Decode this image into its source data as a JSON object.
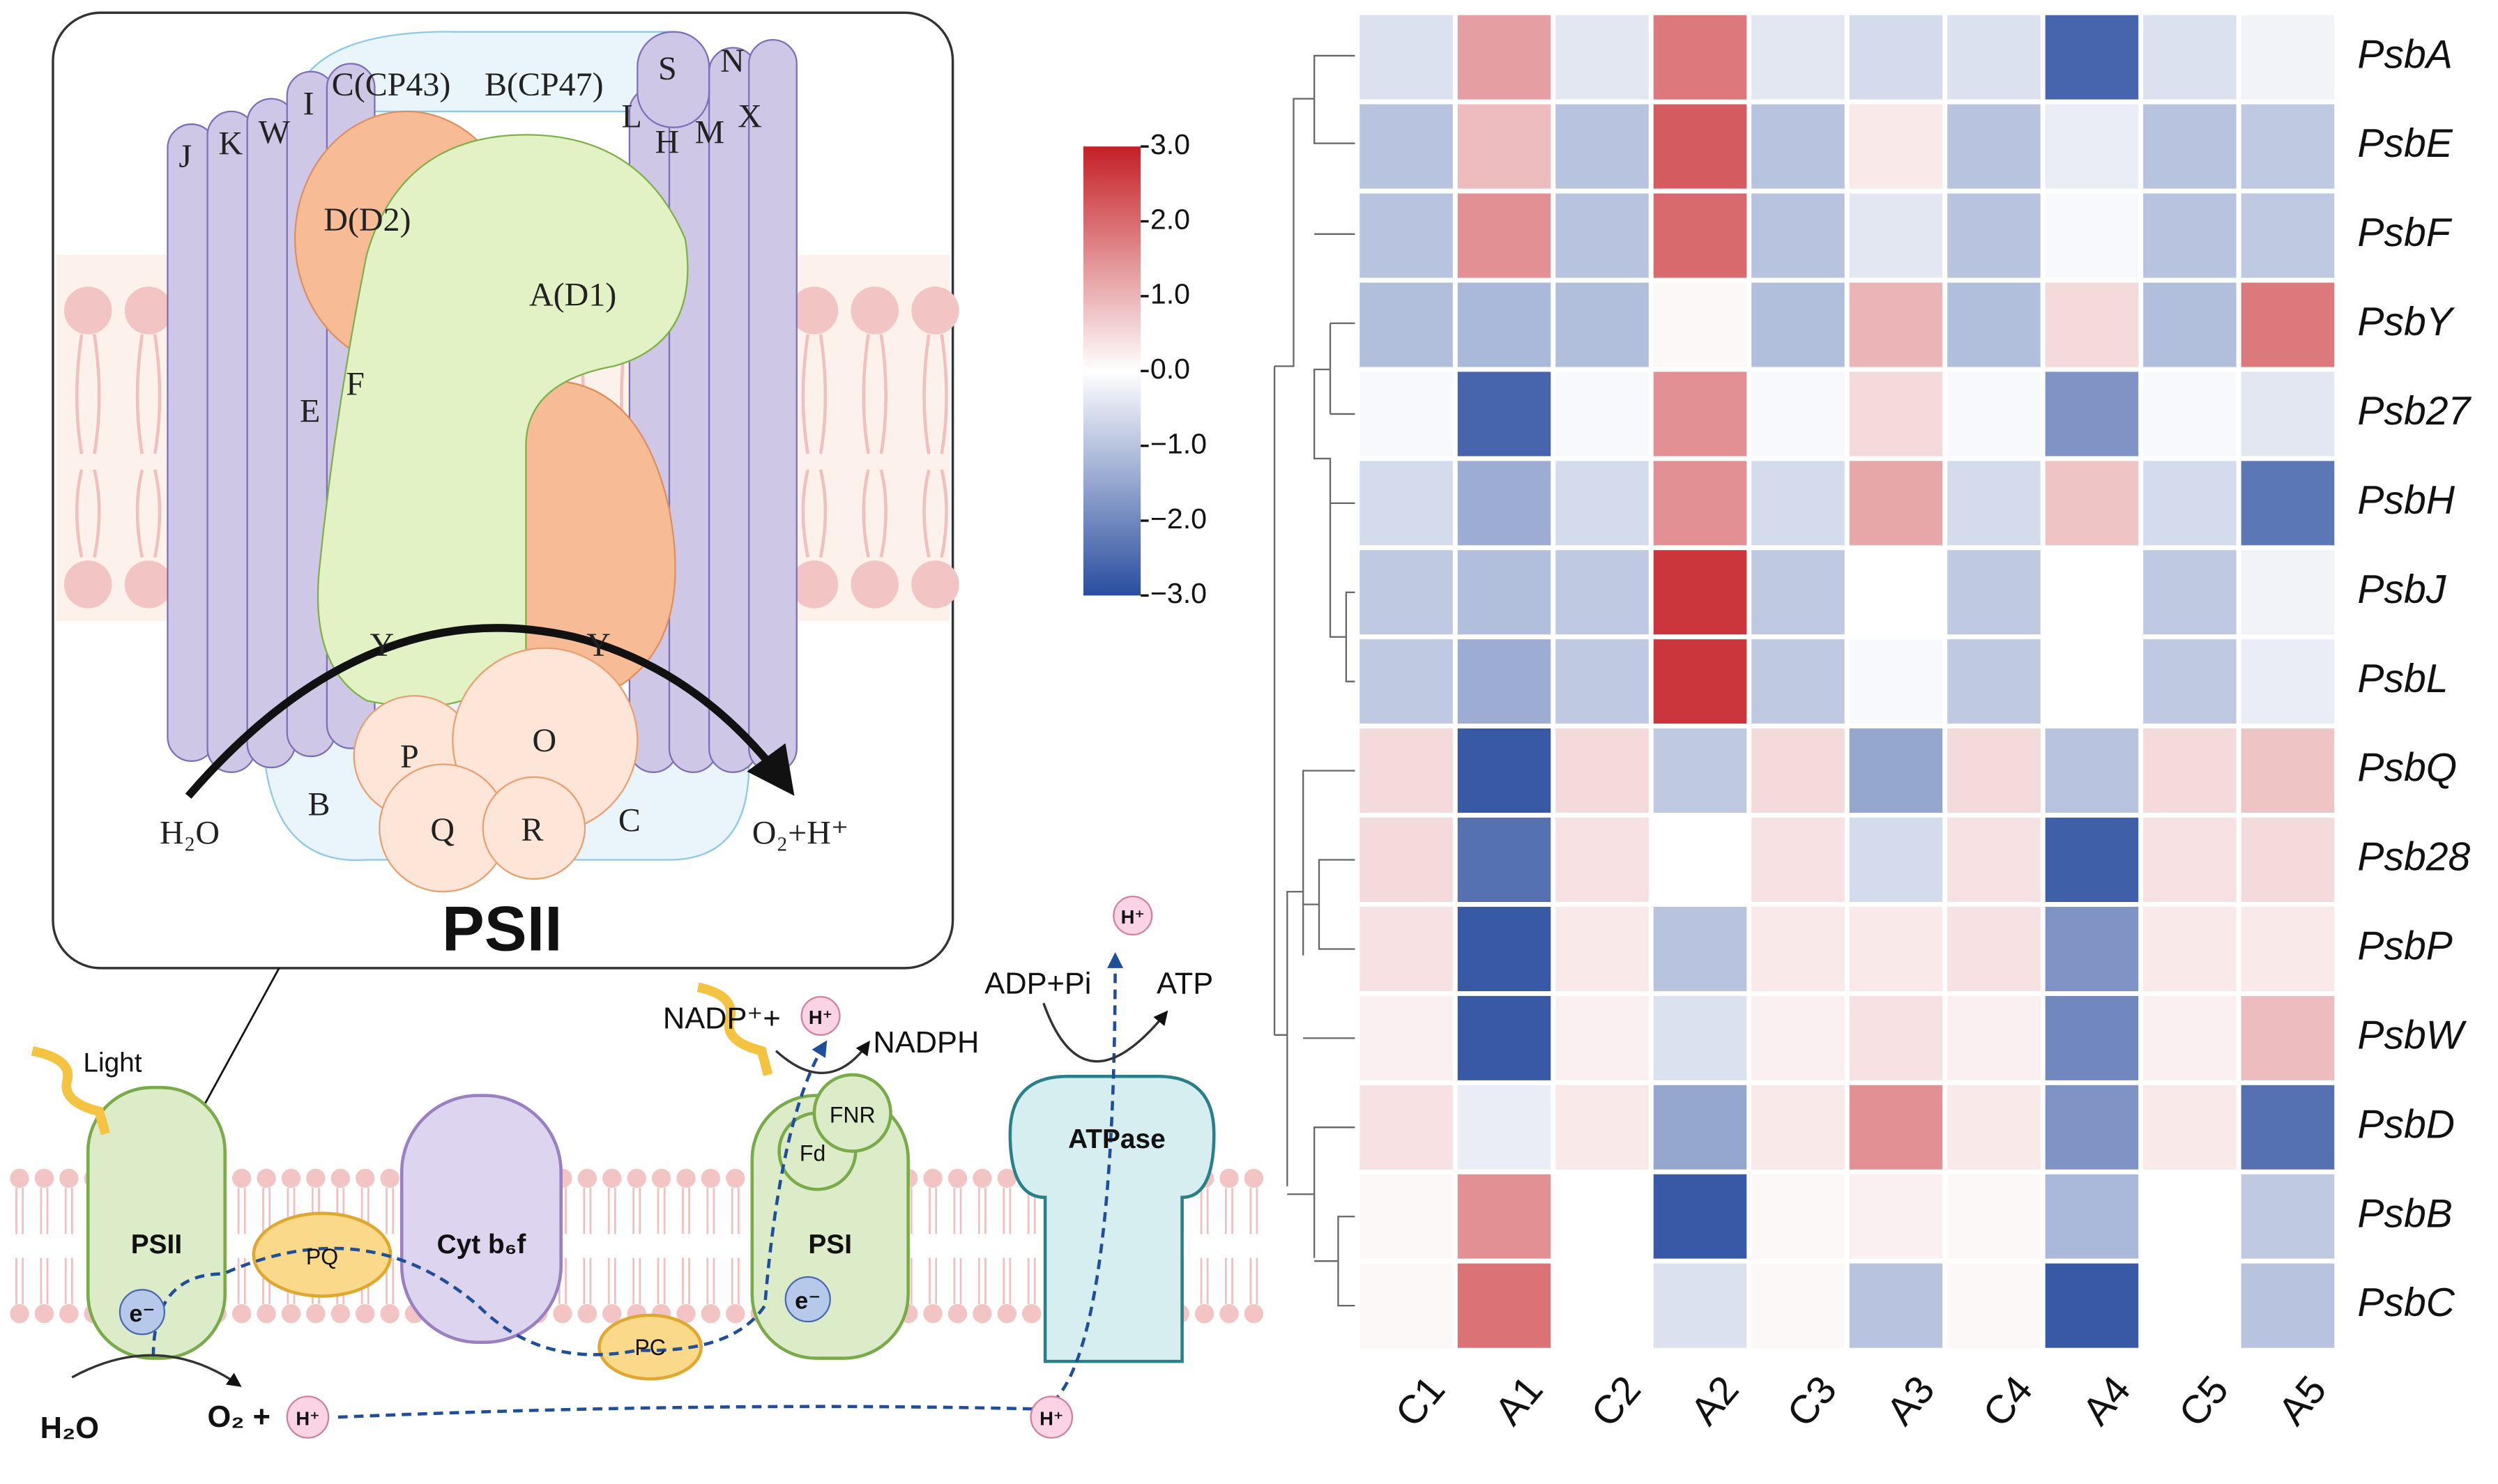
{
  "chart_data": {
    "type": "heatmap",
    "x_categories": [
      "C1",
      "A1",
      "C2",
      "A2",
      "C3",
      "A3",
      "C4",
      "A4",
      "C5",
      "A5"
    ],
    "y_categories": [
      "PsbA",
      "PsbE",
      "PsbF",
      "PsbY",
      "Psb27",
      "PsbH",
      "PsbJ",
      "PsbL",
      "PsbQ",
      "Psb28",
      "PsbP",
      "PsbW",
      "PsbD",
      "PsbB",
      "PsbC"
    ],
    "values": [
      [
        -0.5,
        1.3,
        -0.4,
        1.8,
        -0.4,
        -0.6,
        -0.5,
        -2.6,
        -0.5,
        -0.2
      ],
      [
        -1.0,
        0.9,
        -1.0,
        2.2,
        -1.0,
        0.3,
        -1.0,
        -0.3,
        -1.0,
        -0.9
      ],
      [
        -1.0,
        1.5,
        -1.0,
        2.0,
        -1.0,
        -0.4,
        -1.0,
        -0.1,
        -1.0,
        -0.9
      ],
      [
        -1.1,
        -1.2,
        -1.1,
        0.1,
        -1.1,
        1.0,
        -1.1,
        0.5,
        -1.1,
        1.8
      ],
      [
        -0.1,
        -2.6,
        -0.1,
        1.5,
        -0.1,
        0.5,
        -0.1,
        -1.8,
        -0.1,
        -0.4
      ],
      [
        -0.6,
        -1.4,
        -0.6,
        1.5,
        -0.6,
        1.2,
        -0.6,
        0.8,
        -0.6,
        -2.3
      ],
      [
        -0.9,
        -1.1,
        -0.9,
        2.7,
        -0.9,
        0.0,
        -0.9,
        0.0,
        -0.9,
        -0.2
      ],
      [
        -0.9,
        -1.4,
        -0.9,
        2.7,
        -0.9,
        -0.1,
        -0.9,
        0.0,
        -0.9,
        -0.3
      ],
      [
        0.5,
        -2.8,
        0.5,
        -0.9,
        0.5,
        -1.5,
        0.5,
        -1.0,
        0.5,
        0.8
      ],
      [
        0.5,
        -2.4,
        0.4,
        0.0,
        0.4,
        -0.6,
        0.4,
        -2.7,
        0.4,
        0.5
      ],
      [
        0.4,
        -2.8,
        0.3,
        -1.0,
        0.3,
        0.3,
        0.4,
        -1.8,
        0.3,
        0.3
      ],
      [
        0.2,
        -2.8,
        0.2,
        -0.5,
        0.2,
        0.4,
        0.2,
        -2.0,
        0.2,
        0.9
      ],
      [
        0.4,
        -0.3,
        0.3,
        -1.5,
        0.3,
        1.5,
        0.3,
        -1.8,
        0.3,
        -2.4
      ],
      [
        0.1,
        1.5,
        0.0,
        -2.8,
        0.1,
        0.2,
        0.1,
        -1.2,
        0.0,
        -0.9
      ],
      [
        0.1,
        1.9,
        0.0,
        -0.5,
        0.1,
        -1.0,
        0.1,
        -2.8,
        0.0,
        -1.0
      ]
    ],
    "zlim": [
      -3,
      3
    ],
    "zticks": [
      {
        "value": 3,
        "label": "3.0"
      },
      {
        "value": 2,
        "label": "2.0"
      },
      {
        "value": 1,
        "label": "1.0"
      },
      {
        "value": 0,
        "label": "0.0"
      },
      {
        "value": -1,
        "label": "−1.0"
      },
      {
        "value": -2,
        "label": "−2.0"
      },
      {
        "value": -3,
        "label": "−3.0"
      }
    ],
    "colors": {
      "low": "#2a4d9f",
      "mid": "#ffffff",
      "high": "#c42026"
    }
  },
  "diagram": {
    "inset": {
      "title": "PSII",
      "subunits": [
        "J",
        "K",
        "W",
        "I",
        "C(CP43)",
        "B(CP47)",
        "S",
        "N",
        "L",
        "H",
        "M",
        "X",
        "D(D2)",
        "A(D1)",
        "E",
        "F",
        "Y",
        "Y",
        "P",
        "O",
        "B",
        "Q",
        "R",
        "C"
      ],
      "substrate": "H₂O",
      "product": "O₂+H⁺"
    },
    "chain": {
      "light": "Light",
      "psii": "PSII",
      "pq": "PQ",
      "cyt": "Cyt b₆f",
      "e1": "e⁻",
      "pc": "PC",
      "fnr": "FNR",
      "fd": "Fd",
      "psi": "PSI",
      "e2": "e⁻",
      "atpase": "ATPase",
      "nadp": "NADP⁺+",
      "h1": "H⁺",
      "nadph": "NADPH",
      "adp": "ADP+Pi",
      "atp": "ATP",
      "h2": "H⁺",
      "h3": "H⁺",
      "water": "H₂O",
      "oxygen": "O₂ +",
      "h4": "H⁺"
    }
  }
}
